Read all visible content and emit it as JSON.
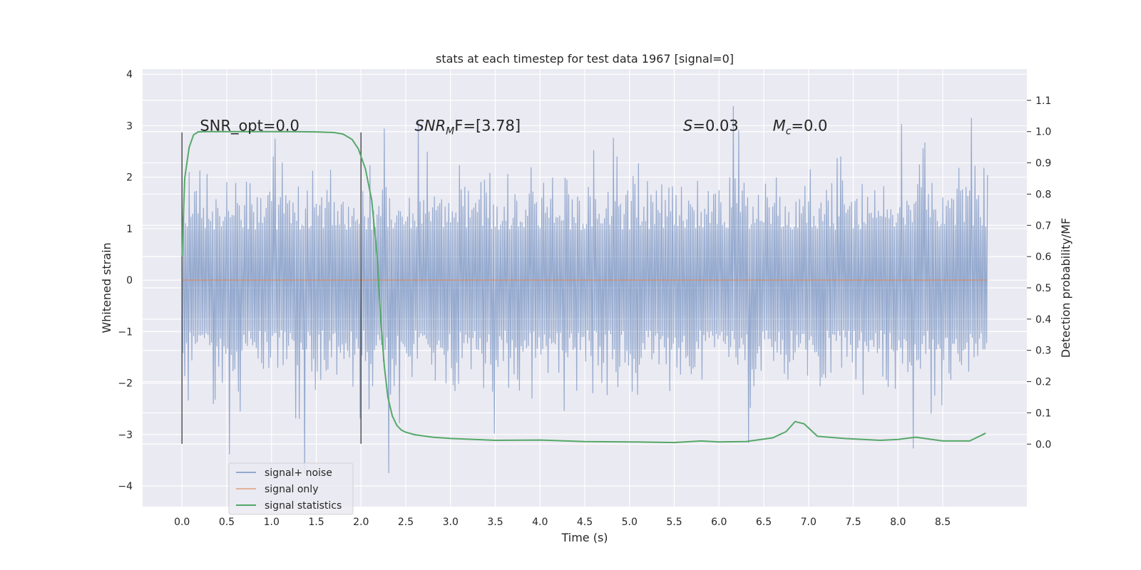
{
  "chart_data": {
    "type": "line",
    "title": "stats at each timestep for test data 1967 [signal=0]",
    "xlabel": "Time (s)",
    "ylabel": "Whitened strain",
    "y2label": "Detection probability/MF",
    "xlim": [
      -0.44,
      9.44
    ],
    "ylim": [
      -4.4,
      4.1
    ],
    "y2lim": [
      -0.2,
      1.2
    ],
    "xticks": [
      0.0,
      0.5,
      1.0,
      1.5,
      2.0,
      2.5,
      3.0,
      3.5,
      4.0,
      4.5,
      5.0,
      5.5,
      6.0,
      6.5,
      7.0,
      7.5,
      8.0,
      8.5
    ],
    "xtick_labels": [
      "0.0",
      "0.5",
      "1.0",
      "1.5",
      "2.0",
      "2.5",
      "3.0",
      "3.5",
      "4.0",
      "4.5",
      "5.0",
      "5.5",
      "6.0",
      "6.5",
      "7.0",
      "7.5",
      "8.0",
      "8.5"
    ],
    "yticks": [
      -4,
      -3,
      -2,
      -1,
      0,
      1,
      2,
      3,
      4
    ],
    "ytick_labels": [
      "−4",
      "−3",
      "−2",
      "−1",
      "0",
      "1",
      "2",
      "3",
      "4"
    ],
    "y2ticks": [
      0.0,
      0.1,
      0.2,
      0.3,
      0.4,
      0.5,
      0.6,
      0.7,
      0.8,
      0.9,
      1.0,
      1.1
    ],
    "y2tick_labels": [
      "0.0",
      "0.1",
      "0.2",
      "0.3",
      "0.4",
      "0.5",
      "0.6",
      "0.7",
      "0.8",
      "0.9",
      "1.0",
      "1.1"
    ],
    "grid": true,
    "legend_position": "lower-left",
    "annotations": [
      {
        "x": 0.2,
        "y": 2.9,
        "text": "SNR_opt=0.0"
      },
      {
        "x": 2.6,
        "y": 2.9,
        "base": "SNR",
        "sub": "M",
        "tail": "F=[3.78]"
      },
      {
        "x": 5.6,
        "y": 2.9,
        "base": "S",
        "sub": "",
        "tail": "=0.03"
      },
      {
        "x": 6.6,
        "y": 2.9,
        "base": "M",
        "sub": "c",
        "tail": "=0.0"
      }
    ],
    "vertical_lines": [
      {
        "x": 0.0,
        "ymin": -3.18,
        "ymax": 2.87
      },
      {
        "x": 2.0,
        "ymin": -3.18,
        "ymax": 2.87
      }
    ],
    "series": [
      {
        "name": "signal+ noise",
        "axis": "left",
        "color": "#4c72b0",
        "style": "noise",
        "x_range": [
          0.0,
          9.0
        ],
        "typical_abs": 1.3,
        "max": 3.69,
        "min": -3.75,
        "samples": 900
      },
      {
        "name": "signal only",
        "axis": "left",
        "color": "#dd8452",
        "x": [
          0.0,
          9.0
        ],
        "values": [
          0.0,
          0.0
        ]
      },
      {
        "name": "signal statistics",
        "axis": "right",
        "color": "#55a868",
        "x": [
          0.0,
          0.03,
          0.08,
          0.13,
          0.18,
          0.25,
          0.4,
          0.8,
          1.2,
          1.5,
          1.7,
          1.8,
          1.9,
          1.97,
          2.05,
          2.12,
          2.18,
          2.22,
          2.26,
          2.3,
          2.35,
          2.4,
          2.45,
          2.5,
          2.6,
          2.8,
          3.0,
          3.5,
          4.0,
          4.5,
          5.0,
          5.5,
          5.8,
          6.0,
          6.3,
          6.6,
          6.75,
          6.85,
          6.95,
          7.1,
          7.4,
          7.8,
          8.0,
          8.2,
          8.5,
          8.8,
          8.98
        ],
        "values": [
          0.6,
          0.85,
          0.95,
          0.99,
          0.999,
          1.0,
          1.0,
          1.0,
          1.0,
          0.999,
          0.997,
          0.992,
          0.975,
          0.945,
          0.88,
          0.78,
          0.6,
          0.4,
          0.25,
          0.15,
          0.09,
          0.06,
          0.045,
          0.038,
          0.03,
          0.022,
          0.018,
          0.012,
          0.013,
          0.008,
          0.007,
          0.005,
          0.01,
          0.007,
          0.008,
          0.02,
          0.04,
          0.072,
          0.065,
          0.025,
          0.018,
          0.012,
          0.015,
          0.022,
          0.01,
          0.01,
          0.035
        ]
      }
    ]
  }
}
